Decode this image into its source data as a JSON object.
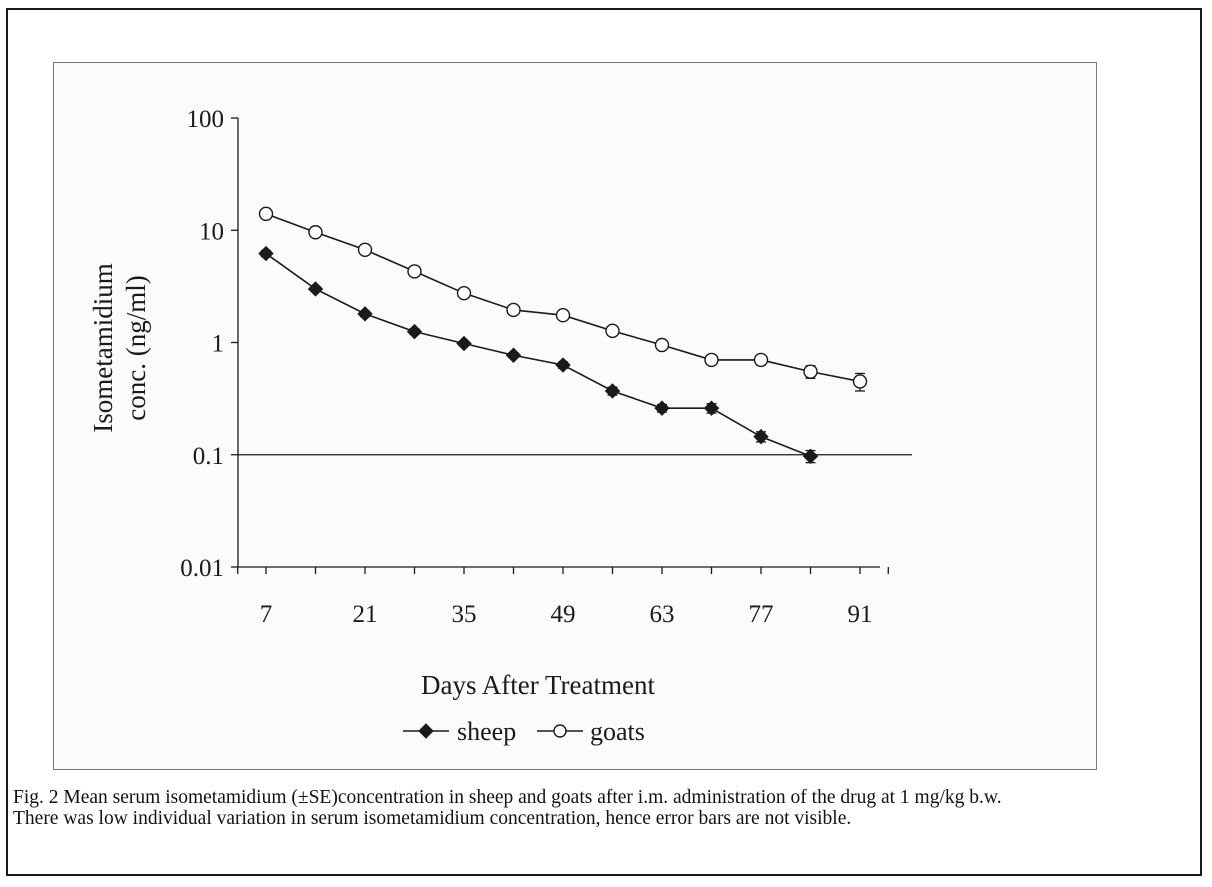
{
  "chart_data": {
    "type": "line",
    "ylabel_line1": "Isometamidium",
    "ylabel_line2": "conc. (ng/ml)",
    "xlabel": "Days After Treatment",
    "y_scale": "log",
    "ylim": [
      0.01,
      100
    ],
    "xlim": [
      7,
      91
    ],
    "y_ticks": [
      {
        "value": 100,
        "label": "100"
      },
      {
        "value": 10,
        "label": "10"
      },
      {
        "value": 1,
        "label": "1"
      },
      {
        "value": 0.1,
        "label": "0.1"
      },
      {
        "value": 0.01,
        "label": "0.01"
      }
    ],
    "x_ticks": [
      {
        "value": 7,
        "label": "7"
      },
      {
        "value": 21,
        "label": "21"
      },
      {
        "value": 35,
        "label": "35"
      },
      {
        "value": 49,
        "label": "49"
      },
      {
        "value": 63,
        "label": "63"
      },
      {
        "value": 77,
        "label": "77"
      },
      {
        "value": 91,
        "label": "91"
      }
    ],
    "x_minor_ticks": [
      3,
      7,
      14,
      21,
      28,
      35,
      42,
      49,
      56,
      63,
      70,
      77,
      84,
      91,
      95
    ],
    "reference_line": 0.1,
    "legend_position": "bottom",
    "series": [
      {
        "name": "sheep",
        "marker": "filled-diamond",
        "color": "#1a1a1a",
        "x": [
          7,
          14,
          21,
          28,
          35,
          42,
          49,
          56,
          63,
          70,
          77,
          84
        ],
        "y": [
          6.2,
          3.0,
          1.8,
          1.25,
          0.98,
          0.77,
          0.63,
          0.37,
          0.26,
          0.26,
          0.145,
          0.097
        ],
        "err": [
          0.4,
          0.15,
          0.1,
          0.07,
          0.05,
          0.04,
          0.04,
          0.03,
          0.02,
          0.025,
          0.015,
          0.012
        ]
      },
      {
        "name": "goats",
        "marker": "open-circle",
        "color": "#1a1a1a",
        "x": [
          7,
          14,
          21,
          28,
          35,
          42,
          49,
          56,
          63,
          70,
          77,
          84,
          91
        ],
        "y": [
          14.0,
          9.6,
          6.7,
          4.3,
          2.75,
          1.95,
          1.75,
          1.27,
          0.95,
          0.7,
          0.7,
          0.55,
          0.45
        ],
        "err": [
          0.5,
          0.3,
          0.25,
          0.2,
          0.12,
          0.08,
          0.08,
          0.06,
          0.05,
          0.05,
          0.07,
          0.07,
          0.08
        ]
      }
    ]
  },
  "caption": {
    "line1": "Fig. 2 Mean serum isometamidium (±SE)concentration in sheep and goats after i.m. administration of the drug at 1 mg/kg b.w.",
    "line2": "There was low individual variation in serum isometamidium concentration, hence error bars are not visible."
  }
}
